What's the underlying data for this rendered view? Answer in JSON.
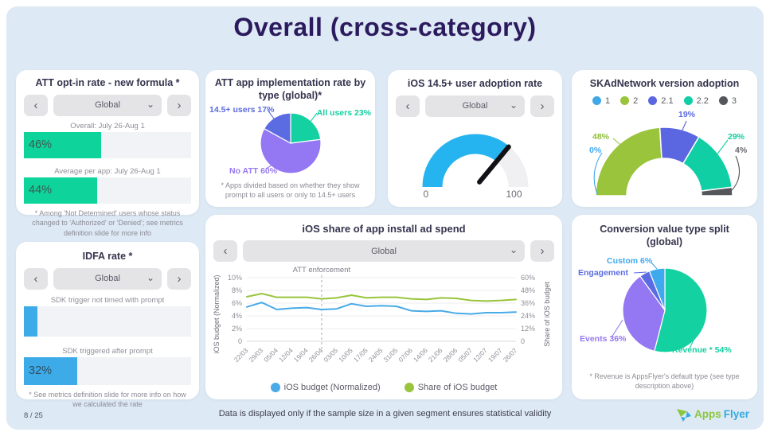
{
  "slide": {
    "title": "Overall (cross-category)",
    "page_number": "8 / 25",
    "disclaimer": "Data is displayed only if the sample size in a given segment ensures statistical validity",
    "logo": {
      "part1": "Apps",
      "part2": "Flyer"
    }
  },
  "ui": {
    "prev": "‹",
    "next": "›",
    "caret": "⌄",
    "region": "Global"
  },
  "cards": {
    "att_opt_in": {
      "title": "ATT opt-in rate - new formula *",
      "overall_caption": "Overall: July 26-Aug 1",
      "overall_label": "46%",
      "avg_caption": "Average per app: July 26-Aug 1",
      "avg_label": "44%",
      "footnote": "* Among 'Not Determined' users whose status changed to 'Authorized' or 'Denied'; see metrics definition slide for more info"
    },
    "att_impl": {
      "title": "ATT app implementation rate by type (global)*",
      "label_145": "14.5+ users 17%",
      "label_all": "All users 23%",
      "label_noatt": "No ATT 60%",
      "footnote": "* Apps divided based on whether they show prompt to all users or only to 14.5+ users"
    },
    "ios145": {
      "title": "iOS 14.5+ user adoption rate",
      "gauge_min": "0",
      "gauge_max": "100"
    },
    "skad": {
      "title": "SKAdNetwork version adoption",
      "legend": [
        {
          "label": "1",
          "color": "#41a8e8"
        },
        {
          "label": "2",
          "color": "#99c43c"
        },
        {
          "label": "2.1",
          "color": "#5b67e0"
        },
        {
          "label": "2.2",
          "color": "#10cfa4"
        },
        {
          "label": "3",
          "color": "#55565c"
        }
      ],
      "callouts": {
        "v2": "48%",
        "v1": "0%",
        "v21": "19%",
        "v22": "29%",
        "v3": "4%"
      }
    },
    "idfa": {
      "title": "IDFA rate *",
      "bar1_caption": "SDK trigger not timed with prompt",
      "bar2_caption": "SDK triggered after prompt",
      "bar2_label": "32%",
      "footnote": "* See metrics definition slide for more info on how we calculated the rate"
    },
    "spend": {
      "title": "iOS share of app install ad spend"
    },
    "conversion": {
      "title": "Conversion value type split (global)",
      "label_custom": "Custom 6%",
      "label_engagement": "Engagement",
      "label_events": "Events 36%",
      "label_revenue": "Revenue * 54%",
      "footnote": "* Revenue is AppsFlyer's default type (see type description above)"
    }
  },
  "chart_data": [
    {
      "id": "att_opt_in_bars",
      "type": "bar",
      "title": "ATT opt-in rate - new formula *",
      "unit": "%",
      "categories": [
        "Overall: July 26-Aug 1",
        "Average per app: July 26-Aug 1"
      ],
      "values": [
        46,
        44
      ],
      "bar_color": "#0ed49c",
      "track_color": "#f1f3f6",
      "xlim": [
        0,
        100
      ]
    },
    {
      "id": "att_impl_pie",
      "type": "pie",
      "title": "ATT app implementation rate by type (global)*",
      "labels": [
        "All users",
        "No ATT",
        "14.5+ users"
      ],
      "values": [
        23,
        60,
        17
      ],
      "colors": [
        "#13d1a0",
        "#9477f2",
        "#5b6ce2"
      ],
      "start_angle": "top",
      "direction": "clockwise"
    },
    {
      "id": "ios145_gauge",
      "type": "gauge",
      "title": "iOS 14.5+ user adoption rate",
      "min": 0,
      "max": 100,
      "value": 72,
      "fill_color": "#25b4f0",
      "track_color": "#f0f0f2",
      "needle_color": "#111116"
    },
    {
      "id": "skad_donut",
      "type": "half_donut",
      "title": "SKAdNetwork version adoption",
      "labels": [
        "1",
        "2",
        "2.1",
        "2.2",
        "3"
      ],
      "values": [
        0,
        48,
        19,
        29,
        4
      ],
      "colors": [
        "#41a8e8",
        "#99c43c",
        "#5b67e0",
        "#10cfa4",
        "#55565c"
      ]
    },
    {
      "id": "idfa_bars",
      "type": "bar",
      "title": "IDFA rate *",
      "unit": "%",
      "categories": [
        "SDK trigger not timed with prompt",
        "SDK triggered after prompt"
      ],
      "values": [
        8,
        32
      ],
      "bar_color": "#3dabe8",
      "track_color": "#f1f3f6",
      "xlim": [
        0,
        100
      ]
    },
    {
      "id": "spend_lines",
      "type": "line",
      "title": "iOS share of app install ad spend",
      "x": [
        "22/03",
        "29/03",
        "05/04",
        "12/04",
        "19/04",
        "26/04",
        "03/05",
        "10/05",
        "17/05",
        "24/05",
        "31/05",
        "07/06",
        "14/06",
        "21/06",
        "28/06",
        "05/07",
        "12/07",
        "19/07",
        "26/07"
      ],
      "series": [
        {
          "name": "iOS budget (Normalized)",
          "axis": "left",
          "color": "#49aae8",
          "values": [
            5.4,
            6.1,
            5.0,
            5.2,
            5.3,
            5.0,
            5.1,
            5.9,
            5.5,
            5.6,
            5.5,
            4.8,
            4.7,
            4.8,
            4.4,
            4.3,
            4.5,
            4.5,
            4.6
          ]
        },
        {
          "name": "Share of iOS budget",
          "axis": "right",
          "color": "#99c43c",
          "values": [
            42,
            45,
            41.5,
            41.5,
            41.5,
            40,
            41,
            43.5,
            41,
            41.5,
            41.5,
            40,
            39.5,
            41,
            40.5,
            38.5,
            38,
            38.5,
            39.5
          ]
        }
      ],
      "left_axis": {
        "label": "iOS budget (Normalized)",
        "max": 10,
        "ticks": [
          "10%",
          "8%",
          "6%",
          "4%",
          "2%",
          "0"
        ]
      },
      "right_axis": {
        "label": "Share of iOS budget",
        "max": 60,
        "ticks": [
          "60%",
          "48%",
          "36%",
          "24%",
          "12%",
          "0"
        ]
      },
      "annotation": {
        "label": "ATT enforcement",
        "x": "26/04"
      },
      "legend_position": "bottom",
      "grid": true
    },
    {
      "id": "conversion_pie",
      "type": "pie",
      "title": "Conversion value type split (global)",
      "labels": [
        "Revenue *",
        "Events",
        "Engagement",
        "Custom"
      ],
      "values": [
        54,
        36,
        4,
        6
      ],
      "colors": [
        "#13d1a0",
        "#9477f2",
        "#5b6ce2",
        "#3fa9ee"
      ],
      "start_angle": "top",
      "direction": "clockwise"
    }
  ]
}
